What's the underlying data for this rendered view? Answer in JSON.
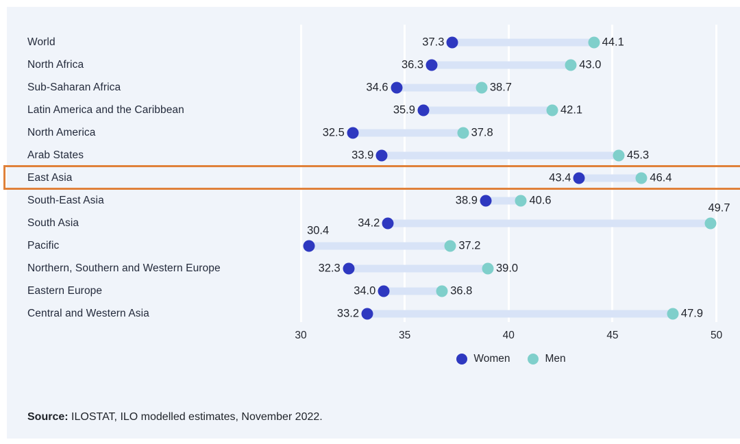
{
  "chart_data": {
    "type": "dumbbell",
    "categories": [
      "World",
      "North Africa",
      "Sub-Saharan Africa",
      "Latin America and the Caribbean",
      "North America",
      "Arab States",
      "East Asia",
      "South-East Asia",
      "South Asia",
      "Pacific",
      "Northern, Southern and Western Europe",
      "Eastern Europe",
      "Central and Western Asia"
    ],
    "series": [
      {
        "name": "Women",
        "color": "#2e38c0",
        "values": [
          37.3,
          36.3,
          34.6,
          35.9,
          32.5,
          33.9,
          43.4,
          38.9,
          34.2,
          30.4,
          32.3,
          34.0,
          33.2
        ]
      },
      {
        "name": "Men",
        "color": "#7fcfcb",
        "values": [
          44.1,
          43.0,
          38.7,
          42.1,
          37.8,
          45.3,
          46.4,
          40.6,
          49.7,
          37.2,
          39.0,
          36.8,
          47.9
        ]
      }
    ],
    "connector_color": "#d8e3f7",
    "xlim": [
      30,
      50
    ],
    "ticks": [
      30,
      35,
      40,
      45,
      50
    ],
    "grid": "vertical-white",
    "legend_position": "bottom-center",
    "highlight": {
      "category": "East Asia",
      "color": "#e0813a"
    },
    "label_overrides": [
      {
        "category": "Pacific",
        "series": "Women",
        "position": "above"
      },
      {
        "category": "South Asia",
        "series": "Men",
        "position": "above"
      }
    ]
  },
  "source": {
    "label": "Source:",
    "text": " ILOSTAT, ILO modelled estimates, November 2022."
  },
  "colors": {
    "panel_background": "#f0f4fa",
    "page_background": "#ffffff",
    "text": "#232a3b"
  }
}
